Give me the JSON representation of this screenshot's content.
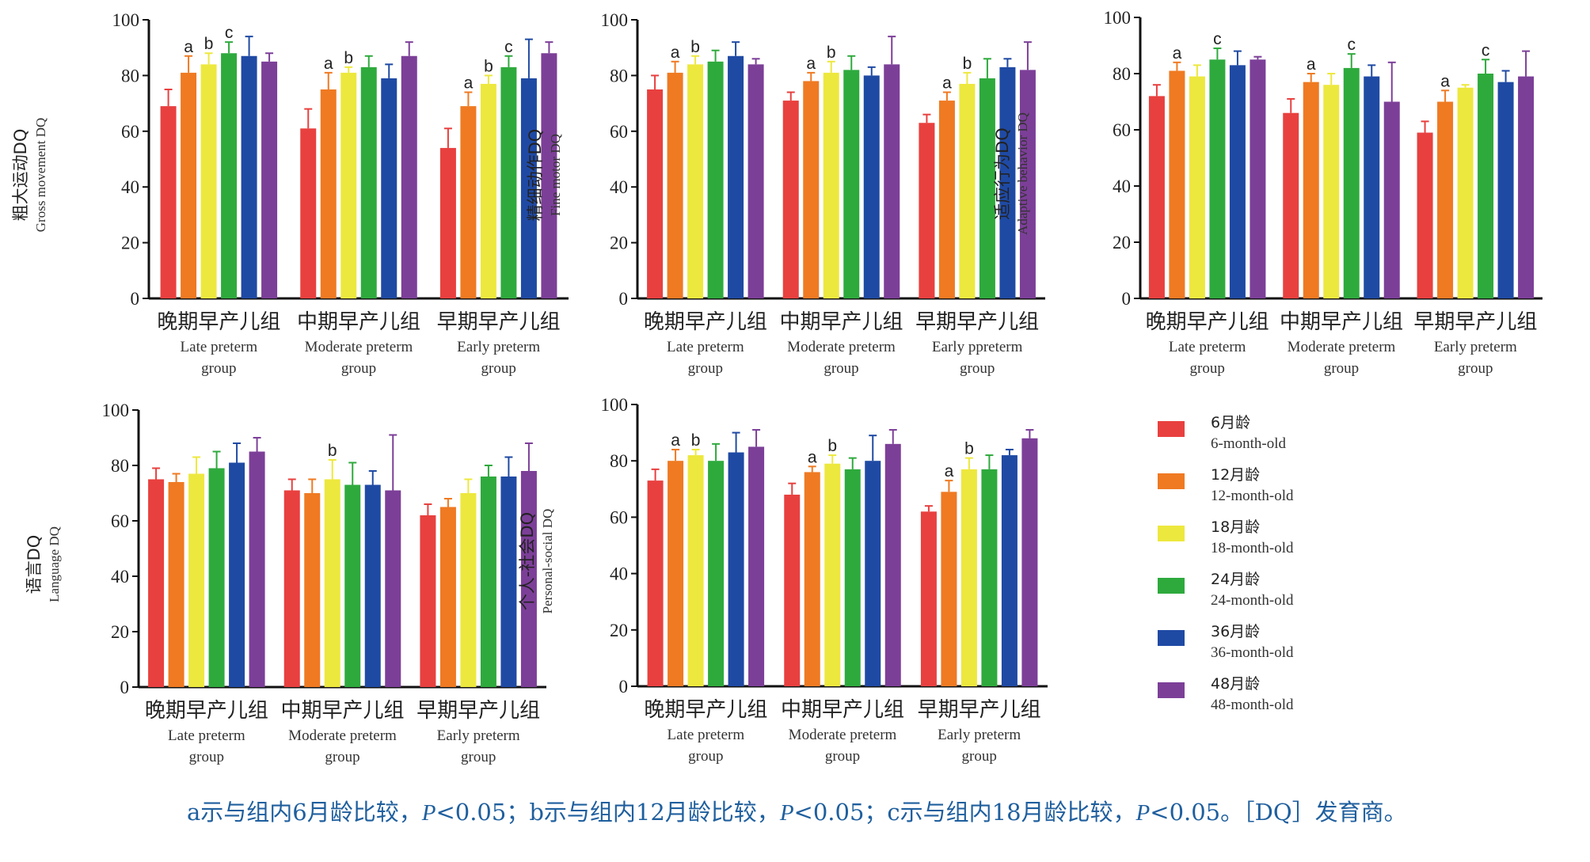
{
  "legend": [
    {
      "cn": "6月龄",
      "en": "6-month-old",
      "color": "#e8403f"
    },
    {
      "cn": "12月龄",
      "en": "12-month-old",
      "color": "#ef7a22"
    },
    {
      "cn": "18月龄",
      "en": "18-month-old",
      "color": "#ede83e"
    },
    {
      "cn": "24月龄",
      "en": "24-month-old",
      "color": "#2eaa3d"
    },
    {
      "cn": "36月龄",
      "en": "36-month-old",
      "color": "#1f4aa4"
    },
    {
      "cn": "48月龄",
      "en": "48-month-old",
      "color": "#7c3f98"
    }
  ],
  "footnote": {
    "p1": "a示与组内6月龄比较，",
    "p2": "P",
    "p3": "<0.05；b示与组内12月龄比较，",
    "p4": "P",
    "p5": "<0.05；c示与组内18月龄比较，",
    "p6": "P",
    "p7": "<0.05。［DQ］发育商。"
  },
  "chart_data": [
    {
      "type": "bar",
      "ylabel_cn": "粗大运动DQ",
      "ylabel_en": "Gross movement DQ",
      "ylim": [
        0,
        100
      ],
      "yticks": [
        0,
        20,
        40,
        60,
        80,
        100
      ],
      "groups": [
        {
          "cn": "晚期早产儿组",
          "en": [
            "Late preterm",
            "group"
          ]
        },
        {
          "cn": "中期早产儿组",
          "en": [
            "Moderate preterm",
            "group"
          ]
        },
        {
          "cn": "早期早产儿组",
          "en": [
            "Early preterm",
            "group"
          ]
        }
      ],
      "values": [
        [
          69,
          81,
          84,
          88,
          87,
          85
        ],
        [
          61,
          75,
          81,
          83,
          79,
          87
        ],
        [
          54,
          69,
          77,
          83,
          79,
          88
        ]
      ],
      "errors": [
        [
          6,
          6,
          4,
          4,
          7,
          3
        ],
        [
          7,
          6,
          2,
          4,
          5,
          5
        ],
        [
          7,
          5,
          3,
          4,
          14,
          4
        ]
      ],
      "labels": [
        [
          "",
          "a",
          "b",
          "c",
          "",
          ""
        ],
        [
          "",
          "a",
          "b",
          "",
          "",
          ""
        ],
        [
          "",
          "a",
          "b",
          "c",
          "",
          ""
        ]
      ]
    },
    {
      "type": "bar",
      "ylabel_cn": "精细动作DQ",
      "ylabel_en": "Fine motor DQ",
      "ylim": [
        0,
        100
      ],
      "yticks": [
        0,
        20,
        40,
        60,
        80,
        100
      ],
      "groups": [
        {
          "cn": "晚期早产儿组",
          "en": [
            "Late preterm",
            "group"
          ]
        },
        {
          "cn": "中期早产儿组",
          "en": [
            "Moderate preterm",
            "group"
          ]
        },
        {
          "cn": "早期早产儿组",
          "en": [
            "Early ppreterm",
            "group"
          ]
        }
      ],
      "values": [
        [
          75,
          81,
          84,
          85,
          87,
          84
        ],
        [
          71,
          78,
          81,
          82,
          80,
          84
        ],
        [
          63,
          71,
          77,
          79,
          83,
          82
        ]
      ],
      "errors": [
        [
          5,
          4,
          3,
          4,
          5,
          2
        ],
        [
          3,
          3,
          4,
          5,
          3,
          10
        ],
        [
          3,
          3,
          4,
          7,
          3,
          10
        ]
      ],
      "labels": [
        [
          "",
          "a",
          "b",
          "",
          "",
          ""
        ],
        [
          "",
          "a",
          "b",
          "",
          "",
          ""
        ],
        [
          "",
          "a",
          "b",
          "",
          "",
          ""
        ]
      ]
    },
    {
      "type": "bar",
      "ylabel_cn": "适应行为DQ",
      "ylabel_en": "Adaptive behavior DQ",
      "ylim": [
        0,
        100
      ],
      "yticks": [
        0,
        20,
        40,
        60,
        80,
        100
      ],
      "groups": [
        {
          "cn": "晚期早产儿组",
          "en": [
            "Late preterm",
            "group"
          ]
        },
        {
          "cn": "中期早产儿组",
          "en": [
            "Moderate preterm",
            "group"
          ]
        },
        {
          "cn": "早期早产儿组",
          "en": [
            "Early preterm",
            "group"
          ]
        }
      ],
      "values": [
        [
          72,
          81,
          79,
          85,
          83,
          85
        ],
        [
          66,
          77,
          76,
          82,
          79,
          70
        ],
        [
          59,
          70,
          75,
          80,
          77,
          79
        ]
      ],
      "errors": [
        [
          4,
          3,
          4,
          4,
          5,
          1
        ],
        [
          5,
          3,
          4,
          5,
          4,
          14
        ],
        [
          4,
          4,
          1,
          5,
          4,
          9
        ]
      ],
      "labels": [
        [
          "",
          "a",
          "",
          "c",
          "",
          ""
        ],
        [
          "",
          "a",
          "",
          "c",
          "",
          ""
        ],
        [
          "",
          "a",
          "",
          "c",
          "",
          ""
        ]
      ]
    },
    {
      "type": "bar",
      "ylabel_cn": "语言DQ",
      "ylabel_en": "Language DQ",
      "ylim": [
        0,
        100
      ],
      "yticks": [
        0,
        20,
        40,
        60,
        80,
        100
      ],
      "groups": [
        {
          "cn": "晚期早产儿组",
          "en": [
            "Late preterm",
            "group"
          ]
        },
        {
          "cn": "中期早产儿组",
          "en": [
            "Moderate preterm",
            "group"
          ]
        },
        {
          "cn": "早期早产儿组",
          "en": [
            "Early preterm",
            "group"
          ]
        }
      ],
      "values": [
        [
          75,
          74,
          77,
          79,
          81,
          85
        ],
        [
          71,
          70,
          75,
          73,
          73,
          71
        ],
        [
          62,
          65,
          70,
          76,
          76,
          78
        ]
      ],
      "errors": [
        [
          4,
          3,
          6,
          6,
          7,
          5
        ],
        [
          4,
          5,
          7,
          8,
          5,
          20
        ],
        [
          4,
          3,
          5,
          4,
          7,
          10
        ]
      ],
      "labels": [
        [
          "",
          "",
          "",
          "",
          "",
          ""
        ],
        [
          "",
          "",
          "b",
          "",
          "",
          ""
        ],
        [
          "",
          "",
          "",
          "",
          "",
          ""
        ]
      ]
    },
    {
      "type": "bar",
      "ylabel_cn": "个人-社会DQ",
      "ylabel_en": "Personal-social DQ",
      "ylim": [
        0,
        100
      ],
      "yticks": [
        0,
        20,
        40,
        60,
        80,
        100
      ],
      "groups": [
        {
          "cn": "晚期早产儿组",
          "en": [
            "Late preterm",
            "group"
          ]
        },
        {
          "cn": "中期早产儿组",
          "en": [
            "Moderate preterm",
            "group"
          ]
        },
        {
          "cn": "早期早产儿组",
          "en": [
            "Early preterm",
            "group"
          ]
        }
      ],
      "values": [
        [
          73,
          80,
          82,
          80,
          83,
          85
        ],
        [
          68,
          76,
          79,
          77,
          80,
          86
        ],
        [
          62,
          69,
          77,
          77,
          82,
          88
        ]
      ],
      "errors": [
        [
          4,
          4,
          2,
          6,
          7,
          6
        ],
        [
          4,
          2,
          3,
          4,
          9,
          5
        ],
        [
          2,
          4,
          4,
          5,
          2,
          3
        ]
      ],
      "labels": [
        [
          "",
          "a",
          "b",
          "",
          "",
          ""
        ],
        [
          "",
          "a",
          "b",
          "",
          "",
          ""
        ],
        [
          "",
          "a",
          "b",
          "",
          "",
          ""
        ]
      ]
    }
  ]
}
